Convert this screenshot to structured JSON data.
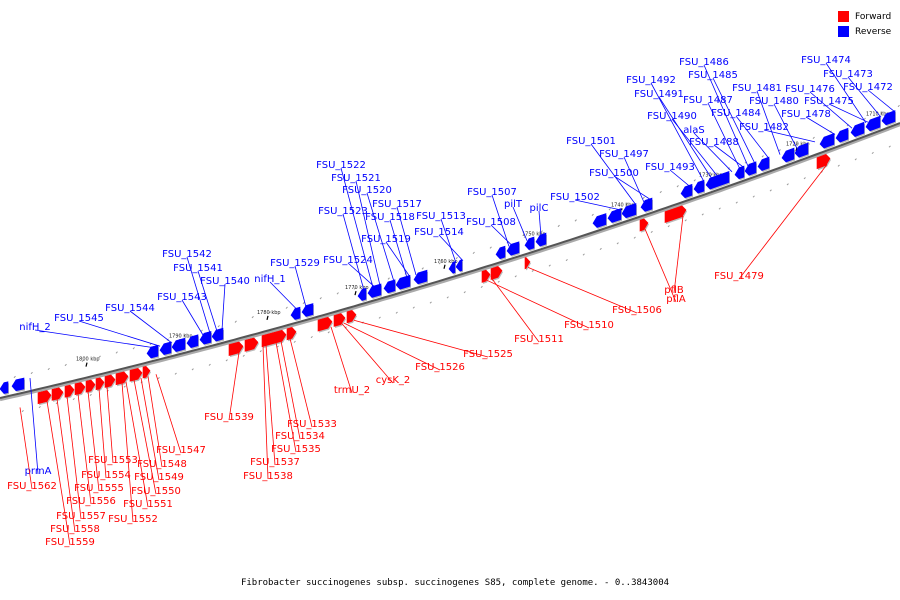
{
  "legend": [
    {
      "label": "Forward",
      "color": "#ff0000"
    },
    {
      "label": "Reverse",
      "color": "#0000ff"
    }
  ],
  "caption": "Fibrobacter succinogenes subsp. succinogenes S85, complete genome. - 0..3843004",
  "scale_labels": [
    "1710 kbp",
    "1720 kbp",
    "1730 kbp",
    "1740 kbp",
    "1750 kbp",
    "1760 kbp",
    "1770 kbp",
    "1780 kbp",
    "1790 kbp",
    "1800 kbp"
  ],
  "reverse_genes": [
    "FSU_1474",
    "FSU_1473",
    "FSU_1472",
    "FSU_1476",
    "FSU_1475",
    "FSU_1478",
    "FSU_1481",
    "FSU_1480",
    "FSU_1482",
    "FSU_1486",
    "FSU_1485",
    "FSU_1484",
    "FSU_1487",
    "FSU_1488",
    "alaS",
    "FSU_1490",
    "FSU_1491",
    "FSU_1492",
    "FSU_1493",
    "FSU_1501",
    "FSU_1497",
    "FSU_1500",
    "FSU_1502",
    "FSU_1507",
    "pilT",
    "pilC",
    "FSU_1508",
    "FSU_1513",
    "FSU_1514",
    "FSU_1522",
    "FSU_1521",
    "FSU_1520",
    "FSU_1517",
    "FSU_1523",
    "FSU_1518",
    "FSU_1519",
    "FSU_1524",
    "FSU_1529",
    "nifH_1",
    "FSU_1542",
    "FSU_1541",
    "FSU_1540",
    "FSU_1543",
    "FSU_1544",
    "FSU_1545",
    "nifH_2",
    "prmA"
  ],
  "forward_genes": [
    "FSU_1479",
    "pflB",
    "pflA",
    "FSU_1506",
    "FSU_1510",
    "FSU_1511",
    "FSU_1525",
    "FSU_1526",
    "cysK_2",
    "trmU_2",
    "FSU_1533",
    "FSU_1534",
    "FSU_1535",
    "FSU_1537",
    "FSU_1538",
    "FSU_1539",
    "FSU_1547",
    "FSU_1548",
    "FSU_1549",
    "FSU_1550",
    "FSU_1551",
    "FSU_1552",
    "FSU_1553",
    "FSU_1554",
    "FSU_1555",
    "FSU_1556",
    "FSU_1557",
    "FSU_1558",
    "FSU_1559",
    "FSU_1562"
  ]
}
